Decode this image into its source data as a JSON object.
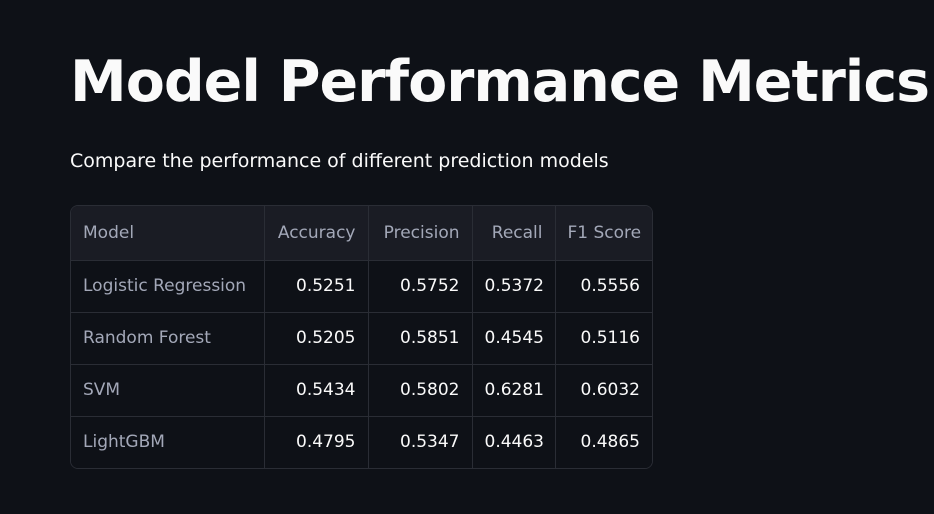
{
  "page": {
    "title": "Model Performance Metrics",
    "subtitle": "Compare the performance of different prediction models"
  },
  "table": {
    "columns": [
      "Model",
      "Accuracy",
      "Precision",
      "Recall",
      "F1 Score"
    ],
    "rows": [
      [
        "Logistic Regression",
        "0.5251",
        "0.5752",
        "0.5372",
        "0.5556"
      ],
      [
        "Random Forest",
        "0.5205",
        "0.5851",
        "0.4545",
        "0.5116"
      ],
      [
        "SVM",
        "0.5434",
        "0.5802",
        "0.6281",
        "0.6032"
      ],
      [
        "LightGBM",
        "0.4795",
        "0.5347",
        "0.4463",
        "0.4865"
      ]
    ]
  },
  "colors": {
    "background": "#0e1117",
    "text": "#fafafa",
    "muted_text": "#a3a8b8",
    "header_bg": "#1a1c24",
    "border": "#2a2d35"
  }
}
